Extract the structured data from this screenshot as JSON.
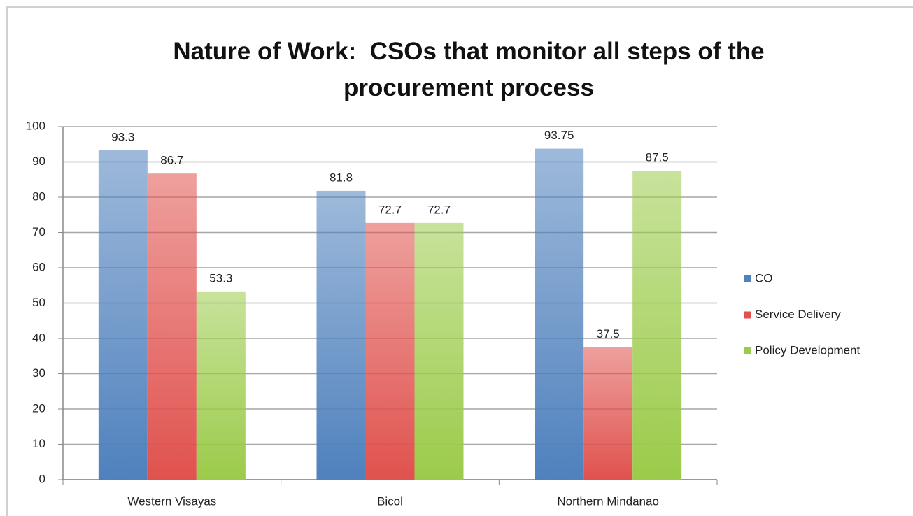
{
  "chart_data": {
    "type": "bar",
    "title": "Nature of Work:  CSOs that monitor all steps of the procurement process",
    "categories": [
      "Western Visayas",
      "Bicol",
      "Northern Mindanao"
    ],
    "series": [
      {
        "name": "CO",
        "color": "#4f81bd",
        "values": [
          93.3,
          81.8,
          93.75
        ]
      },
      {
        "name": "Service Delivery",
        "color": "#e0524e",
        "values": [
          86.7,
          72.7,
          37.5
        ]
      },
      {
        "name": "Policy Development",
        "color": "#9bcb4a",
        "values": [
          53.3,
          72.7,
          87.5
        ]
      }
    ],
    "ylim": [
      0,
      100
    ],
    "yticks": [
      0,
      10,
      20,
      30,
      40,
      50,
      60,
      70,
      80,
      90,
      100
    ],
    "grid": true,
    "legend": "right"
  }
}
